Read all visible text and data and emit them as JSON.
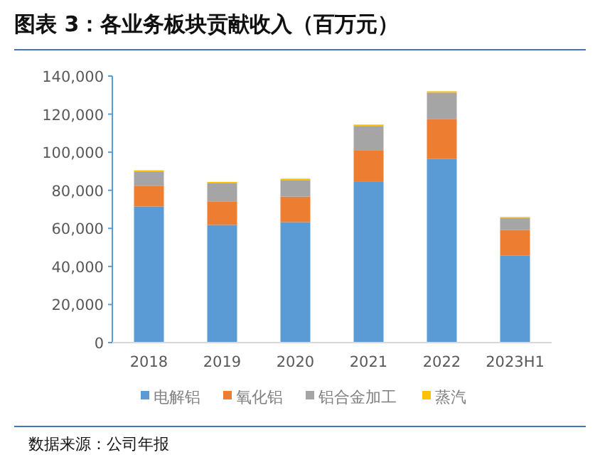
{
  "chart_data": {
    "type": "bar",
    "title": "图表 3：各业务板块贡献收入（百万元）",
    "categories": [
      "2018",
      "2019",
      "2020",
      "2021",
      "2022",
      "2023H1"
    ],
    "stacked": true,
    "series": [
      {
        "name": "电解铝",
        "color": "#5b9bd5",
        "values": [
          71500,
          61800,
          63300,
          84400,
          96400,
          45800
        ]
      },
      {
        "name": "氧化铝",
        "color": "#ed7d31",
        "values": [
          10900,
          12400,
          13400,
          16700,
          21100,
          13400
        ]
      },
      {
        "name": "铝合金加工",
        "color": "#a5a5a5",
        "values": [
          7500,
          9700,
          8700,
          12700,
          13800,
          6300
        ]
      },
      {
        "name": "蒸汽",
        "color": "#ffc000",
        "values": [
          600,
          500,
          700,
          700,
          700,
          500
        ]
      }
    ],
    "ylim": [
      0,
      140000
    ],
    "yticks": [
      0,
      {
        "value": 20000,
        "label": "20,000"
      },
      {
        "value": 40000,
        "label": "40,000"
      },
      {
        "value": 60000,
        "label": "60,000"
      },
      {
        "value": 80000,
        "label": "80,000"
      },
      {
        "value": 100000,
        "label": "100,000"
      },
      {
        "value": 120000,
        "label": "120,000"
      },
      {
        "value": 140000,
        "label": "140,000"
      }
    ],
    "legend": "bottom",
    "grid": false,
    "annotations": [
      "数据来源：公司年报"
    ]
  }
}
